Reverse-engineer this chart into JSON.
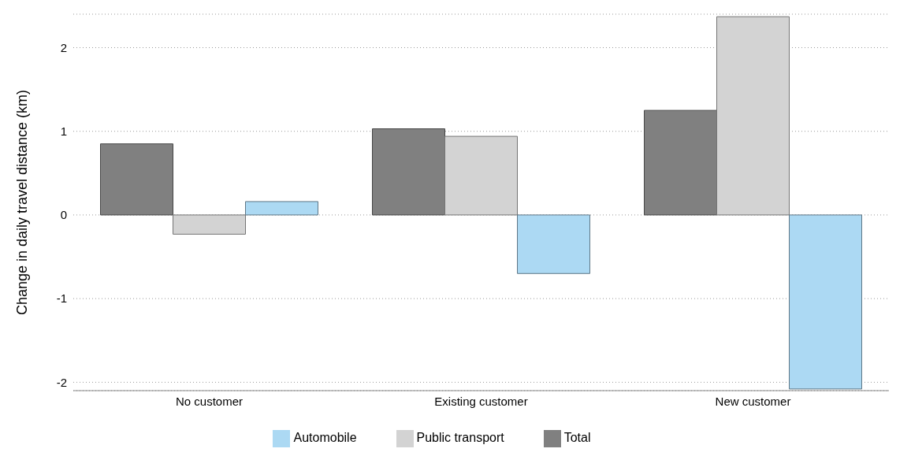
{
  "chart_data": {
    "type": "bar",
    "ylabel": "Change in daily travel distance (km)",
    "categories": [
      "No customer",
      "Existing customer",
      "New customer"
    ],
    "series": [
      {
        "name": "Total",
        "color": "#808080",
        "values": [
          0.85,
          1.03,
          1.25
        ]
      },
      {
        "name": "Public transport",
        "color": "#d3d3d3",
        "values": [
          -0.23,
          0.94,
          2.37
        ]
      },
      {
        "name": "Automobile",
        "color": "#acd9f3",
        "values": [
          0.16,
          -0.7,
          -2.08
        ]
      }
    ],
    "ylim": [
      -2.1,
      2.4
    ],
    "yticks": [
      -2,
      -1,
      0,
      1,
      2
    ],
    "grid": "y",
    "legend": "bottom"
  }
}
